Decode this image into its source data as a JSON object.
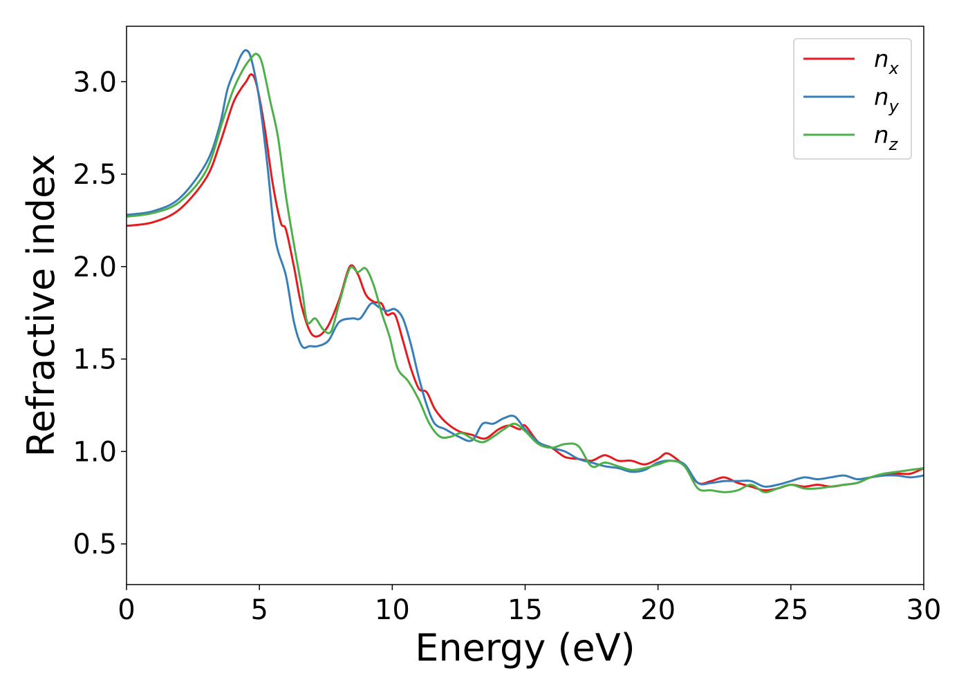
{
  "chart_data": {
    "type": "line",
    "xlabel": "Energy (eV)",
    "ylabel": "Refractive index",
    "xlim": [
      0,
      30
    ],
    "ylim": [
      0.28,
      3.3
    ],
    "xticks": [
      0,
      5,
      10,
      15,
      20,
      25,
      30
    ],
    "yticks": [
      0.5,
      1.0,
      1.5,
      2.0,
      2.5,
      3.0
    ],
    "xtick_labels": [
      "0",
      "5",
      "10",
      "15",
      "20",
      "25",
      "30"
    ],
    "ytick_labels": [
      "0.5",
      "1.0",
      "1.5",
      "2.0",
      "2.5",
      "3.0"
    ],
    "grid": false,
    "legend_position": "top-right",
    "series": [
      {
        "name": "n",
        "subscript": "x",
        "color": "#e41a1c",
        "x": [
          0,
          1,
          2,
          3,
          3.5,
          4,
          4.3,
          4.5,
          4.7,
          4.9,
          5.2,
          5.5,
          5.8,
          6.0,
          6.3,
          6.6,
          7.0,
          7.5,
          8.0,
          8.4,
          8.7,
          9.0,
          9.3,
          9.6,
          9.8,
          10.1,
          10.4,
          10.7,
          11.0,
          11.3,
          11.6,
          12.0,
          12.5,
          13.0,
          13.5,
          14.0,
          14.4,
          14.8,
          15.0,
          15.5,
          16.0,
          16.5,
          17.0,
          17.5,
          18.0,
          18.5,
          19.0,
          19.5,
          20.0,
          20.3,
          20.6,
          21.0,
          21.5,
          22.0,
          22.5,
          23.0,
          23.5,
          24.0,
          24.5,
          25.0,
          25.5,
          26.0,
          26.5,
          27.0,
          27.5,
          28.0,
          28.5,
          29.0,
          29.5,
          30.0
        ],
        "y": [
          2.22,
          2.24,
          2.31,
          2.48,
          2.66,
          2.88,
          2.96,
          3.0,
          3.04,
          2.98,
          2.75,
          2.45,
          2.24,
          2.2,
          2.0,
          1.78,
          1.63,
          1.66,
          1.82,
          2.0,
          1.96,
          1.85,
          1.81,
          1.8,
          1.74,
          1.74,
          1.6,
          1.45,
          1.34,
          1.32,
          1.23,
          1.16,
          1.11,
          1.09,
          1.07,
          1.12,
          1.14,
          1.12,
          1.14,
          1.05,
          1.02,
          0.97,
          0.96,
          0.95,
          0.98,
          0.95,
          0.95,
          0.93,
          0.96,
          0.99,
          0.97,
          0.92,
          0.83,
          0.84,
          0.86,
          0.83,
          0.81,
          0.79,
          0.8,
          0.82,
          0.81,
          0.82,
          0.81,
          0.82,
          0.83,
          0.86,
          0.87,
          0.88,
          0.88,
          0.91
        ]
      },
      {
        "name": "n",
        "subscript": "y",
        "color": "#377eb8",
        "x": [
          0,
          1,
          2,
          3,
          3.5,
          3.8,
          4.1,
          4.3,
          4.5,
          4.7,
          5.0,
          5.3,
          5.6,
          6.0,
          6.3,
          6.6,
          6.9,
          7.2,
          7.6,
          8.0,
          8.5,
          8.8,
          9.2,
          9.5,
          9.8,
          10.1,
          10.4,
          10.7,
          11.0,
          11.3,
          11.6,
          12.0,
          12.5,
          13.0,
          13.4,
          13.8,
          14.2,
          14.6,
          15.0,
          15.5,
          16.0,
          16.5,
          17.0,
          17.5,
          18.0,
          18.5,
          19.0,
          19.5,
          20.0,
          20.5,
          21.0,
          21.5,
          22.0,
          22.5,
          23.0,
          23.5,
          24.0,
          24.5,
          25.0,
          25.5,
          26.0,
          26.5,
          27.0,
          27.5,
          28.0,
          28.5,
          29.0,
          29.5,
          30.0
        ],
        "y": [
          2.28,
          2.3,
          2.37,
          2.56,
          2.76,
          2.96,
          3.07,
          3.14,
          3.17,
          3.12,
          2.9,
          2.55,
          2.15,
          1.95,
          1.7,
          1.57,
          1.57,
          1.57,
          1.6,
          1.7,
          1.72,
          1.72,
          1.8,
          1.78,
          1.76,
          1.77,
          1.72,
          1.58,
          1.4,
          1.25,
          1.15,
          1.12,
          1.08,
          1.06,
          1.15,
          1.15,
          1.18,
          1.19,
          1.12,
          1.05,
          1.02,
          1.0,
          0.96,
          0.94,
          0.92,
          0.91,
          0.89,
          0.9,
          0.94,
          0.95,
          0.93,
          0.83,
          0.83,
          0.84,
          0.84,
          0.84,
          0.81,
          0.82,
          0.84,
          0.86,
          0.85,
          0.86,
          0.87,
          0.85,
          0.86,
          0.87,
          0.87,
          0.86,
          0.87
        ]
      },
      {
        "name": "n",
        "subscript": "z",
        "color": "#4daf4a",
        "x": [
          0,
          1,
          2,
          3,
          3.6,
          4.0,
          4.4,
          4.7,
          4.9,
          5.1,
          5.4,
          5.7,
          6.0,
          6.3,
          6.6,
          6.8,
          7.1,
          7.4,
          7.7,
          8.0,
          8.4,
          8.7,
          9.0,
          9.3,
          9.6,
          9.9,
          10.2,
          10.6,
          11.0,
          11.4,
          11.8,
          12.2,
          12.6,
          13.0,
          13.4,
          13.8,
          14.2,
          14.6,
          15.0,
          15.5,
          16.0,
          16.5,
          17.0,
          17.5,
          18.0,
          18.5,
          19.0,
          19.5,
          20.0,
          20.5,
          21.0,
          21.5,
          22.0,
          22.5,
          23.0,
          23.5,
          24.0,
          24.5,
          25.0,
          25.5,
          26.0,
          26.5,
          27.0,
          27.5,
          28.0,
          28.5,
          29.0,
          29.5,
          30.0
        ],
        "y": [
          2.27,
          2.29,
          2.35,
          2.52,
          2.78,
          2.95,
          3.07,
          3.13,
          3.15,
          3.1,
          2.9,
          2.7,
          2.38,
          2.12,
          1.88,
          1.7,
          1.72,
          1.66,
          1.65,
          1.8,
          1.99,
          1.97,
          1.99,
          1.9,
          1.75,
          1.62,
          1.45,
          1.38,
          1.28,
          1.15,
          1.08,
          1.08,
          1.1,
          1.07,
          1.05,
          1.08,
          1.12,
          1.15,
          1.11,
          1.04,
          1.02,
          1.04,
          1.03,
          0.92,
          0.94,
          0.92,
          0.9,
          0.91,
          0.93,
          0.95,
          0.92,
          0.8,
          0.79,
          0.78,
          0.79,
          0.82,
          0.78,
          0.8,
          0.82,
          0.8,
          0.8,
          0.81,
          0.82,
          0.83,
          0.86,
          0.88,
          0.89,
          0.9,
          0.91
        ]
      }
    ]
  }
}
